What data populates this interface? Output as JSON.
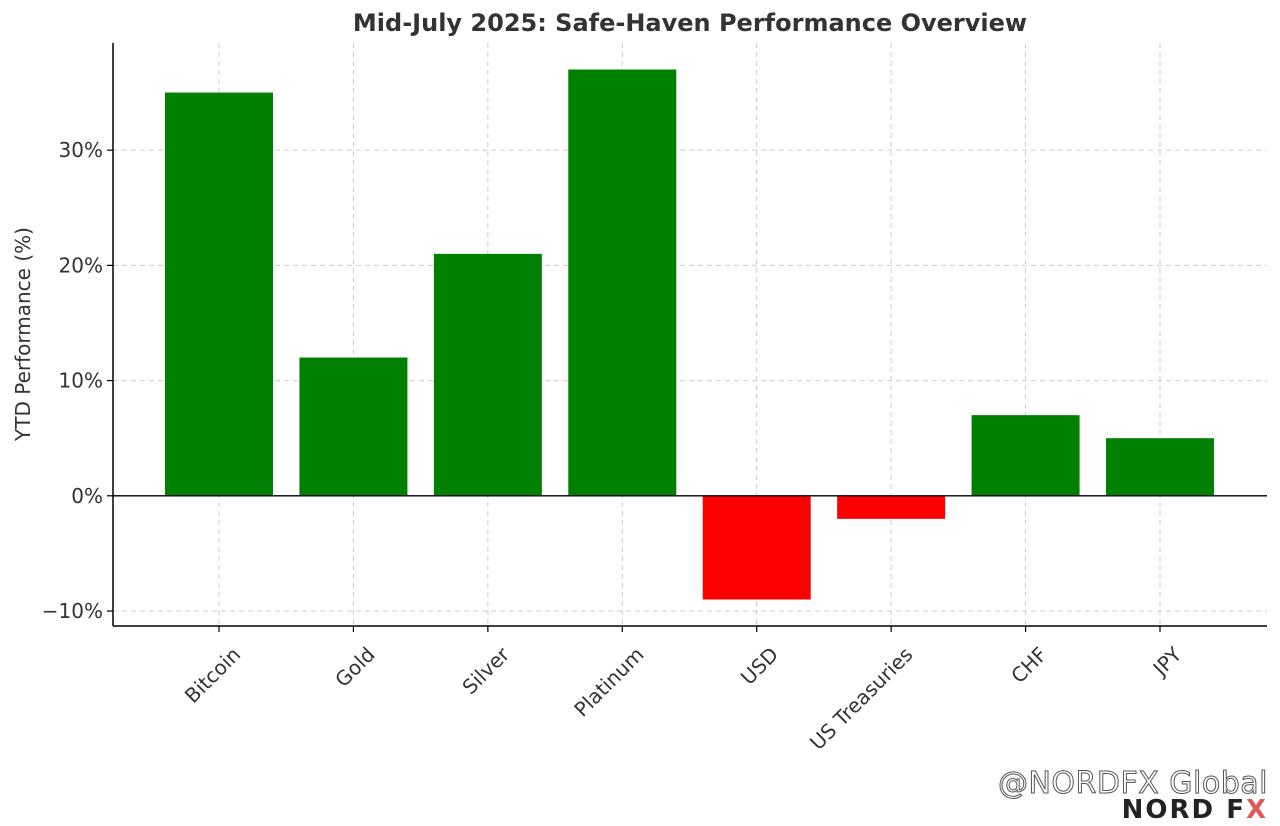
{
  "chart_data": {
    "type": "bar",
    "title": "Mid-July 2025: Safe-Haven Performance Overview",
    "xlabel": "",
    "ylabel": "YTD Performance (%)",
    "categories": [
      "Bitcoin",
      "Gold",
      "Silver",
      "Platinum",
      "USD",
      "US Treasuries",
      "CHF",
      "JPY"
    ],
    "values": [
      35,
      12,
      21,
      37,
      -9,
      -2,
      7,
      5
    ],
    "yticks": [
      -10,
      0,
      10,
      20,
      30
    ],
    "ytick_labels": [
      "−10%",
      "0%",
      "10%",
      "20%",
      "30%"
    ],
    "ylim": [
      -11.3,
      39.3
    ],
    "grid": true,
    "colors": {
      "positive": "#008000",
      "negative": "#ff0000"
    }
  },
  "watermark": {
    "handle": "@NORDFX Global",
    "logo_main": "NORD F",
    "logo_accent": "X"
  }
}
